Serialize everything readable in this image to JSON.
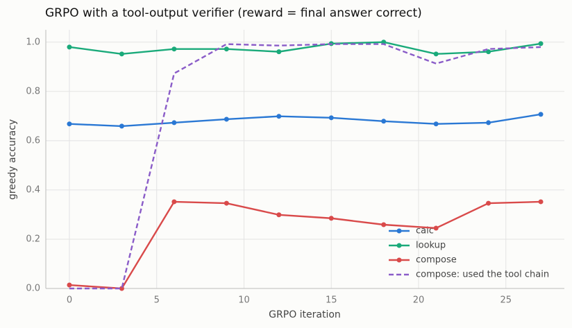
{
  "chart_data": {
    "type": "line",
    "title": "GRPO with a tool-output verifier (reward = final answer correct)",
    "x_label": "GRPO iteration",
    "y_label": "greedy accuracy",
    "x": [
      0,
      3,
      6,
      9,
      12,
      15,
      18,
      21,
      24,
      27
    ],
    "series": [
      {
        "name": "calc",
        "color": "#2a78d4",
        "dashed": false,
        "markers": true,
        "values": [
          0.668,
          0.659,
          0.673,
          0.687,
          0.699,
          0.693,
          0.679,
          0.668,
          0.673,
          0.707
        ]
      },
      {
        "name": "lookup",
        "color": "#1aaa7a",
        "dashed": false,
        "markers": true,
        "values": [
          0.98,
          0.952,
          0.972,
          0.972,
          0.961,
          0.994,
          1.0,
          0.952,
          0.961,
          0.994
        ]
      },
      {
        "name": "compose",
        "color": "#d94a4a",
        "dashed": false,
        "markers": true,
        "values": [
          0.014,
          0,
          0.352,
          0.346,
          0.299,
          0.285,
          0.259,
          0.245,
          0.346,
          0.352
        ]
      },
      {
        "name": "compose: used the tool chain",
        "color": "#8a5cc8",
        "dashed": true,
        "markers": false,
        "values": [
          0,
          0,
          0.873,
          0.992,
          0.986,
          0.992,
          0.992,
          0.913,
          0.972,
          0.98
        ]
      }
    ],
    "xlim": [
      -1.35,
      28.35
    ],
    "ylim": [
      0,
      1.05
    ],
    "xticks": [
      0,
      5,
      10,
      15,
      20,
      25
    ],
    "yticks": [
      {
        "value": 0,
        "label": "0.0"
      },
      {
        "value": 0.2,
        "label": "0.2"
      },
      {
        "value": 0.4,
        "label": "0.4"
      },
      {
        "value": 0.6,
        "label": "0.6"
      },
      {
        "value": 0.8,
        "label": "0.8"
      },
      {
        "value": 1.0,
        "label": "1.0"
      }
    ],
    "grid": true,
    "legend": "lower right"
  }
}
